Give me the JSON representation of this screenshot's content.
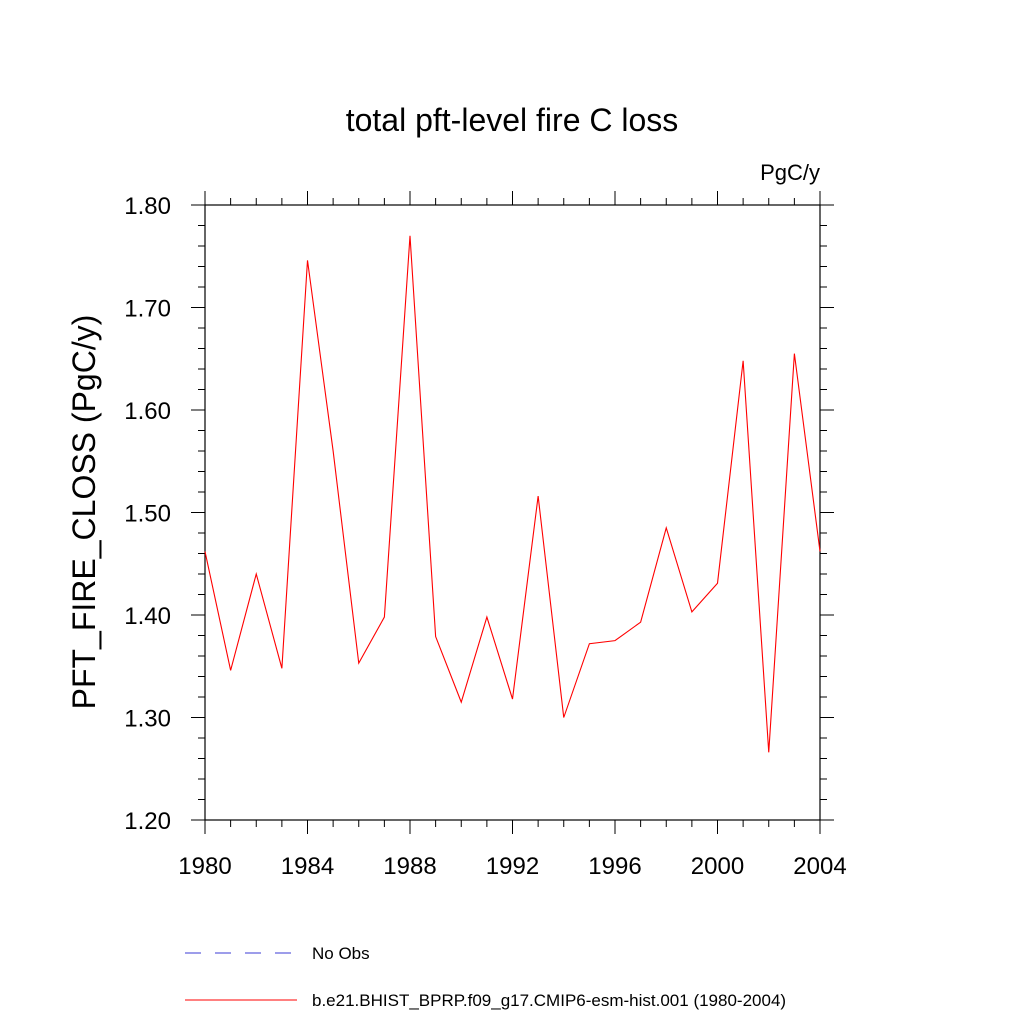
{
  "chart_data": {
    "type": "line",
    "title": "total pft-level fire C loss",
    "units_label": "PgC/y",
    "ylabel": "PFT_FIRE_CLOSS  (PgC/y)",
    "xlabel": "",
    "xlim": [
      1980,
      2004
    ],
    "ylim": [
      1.2,
      1.8
    ],
    "x_ticks": [
      1980,
      1984,
      1988,
      1992,
      1996,
      2000,
      2004
    ],
    "x_tick_labels": [
      "1980",
      "1984",
      "1988",
      "1992",
      "1996",
      "2000",
      "2004"
    ],
    "y_ticks": [
      1.2,
      1.3,
      1.4,
      1.5,
      1.6,
      1.7,
      1.8
    ],
    "y_tick_labels": [
      "1.20",
      "1.30",
      "1.40",
      "1.50",
      "1.60",
      "1.70",
      "1.80"
    ],
    "grid": false,
    "legend_position": "bottom",
    "legend": [
      {
        "label": "No Obs",
        "color": "#3b3bd6",
        "style": "dashed"
      },
      {
        "label": "b.e21.BHIST_BPRP.f09_g17.CMIP6-esm-hist.001 (1980-2004)",
        "color": "#ff0000",
        "style": "solid"
      }
    ],
    "series": [
      {
        "color": "#ff0000",
        "x": [
          1980,
          1981,
          1982,
          1983,
          1984,
          1985,
          1986,
          1987,
          1988,
          1989,
          1990,
          1991,
          1992,
          1993,
          1994,
          1995,
          1996,
          1997,
          1998,
          1999,
          2000,
          2001,
          2002,
          2003,
          2004
        ],
        "y": [
          1.462,
          1.346,
          1.44,
          1.348,
          1.746,
          1.56,
          1.353,
          1.398,
          1.77,
          1.379,
          1.315,
          1.398,
          1.318,
          1.516,
          1.3,
          1.372,
          1.375,
          1.393,
          1.485,
          1.403,
          1.431,
          1.648,
          1.266,
          1.655,
          1.462
        ]
      }
    ]
  }
}
